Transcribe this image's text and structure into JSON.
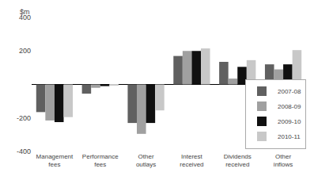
{
  "chart_data": {
    "type": "bar",
    "ylabel": "$m",
    "categories": [
      "Management\nfees",
      "Performance\nfees",
      "Other\noutlays",
      "Interest\nreceived",
      "Dividends\nreceived",
      "Other\ninflows"
    ],
    "series": [
      {
        "name": "2007-08",
        "color": "#606060",
        "values": [
          -165,
          -55,
          -230,
          170,
          135,
          120
        ]
      },
      {
        "name": "2008-09",
        "color": "#a0a0a0",
        "values": [
          -215,
          -20,
          -295,
          200,
          35,
          90
        ]
      },
      {
        "name": "2009-10",
        "color": "#101010",
        "values": [
          -225,
          -10,
          -230,
          200,
          105,
          120
        ]
      },
      {
        "name": "2010-11",
        "color": "#c8c8c8",
        "values": [
          -195,
          -5,
          -155,
          215,
          145,
          205
        ]
      }
    ],
    "ylim": [
      -400,
      400
    ],
    "yticks": [
      -400,
      -200,
      200,
      400
    ],
    "grid": false,
    "legend": "lower right"
  }
}
